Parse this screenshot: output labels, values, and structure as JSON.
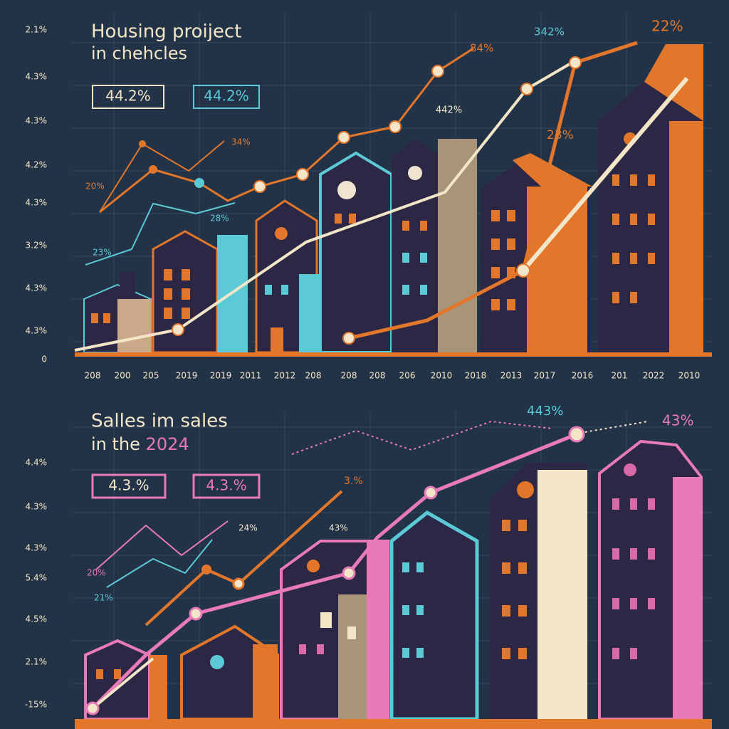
{
  "top_panel": {
    "title": [
      "Housing proiject",
      "in chehcles"
    ],
    "badges": [
      "44.2%",
      "44.2%"
    ],
    "y_labels": [
      "2.1%",
      "4.3%",
      "4.3%",
      "4.2%",
      "4.3%",
      "3.2%",
      "4.3%",
      "4.3%",
      "0"
    ],
    "x_labels": [
      "208",
      "200",
      "205",
      "2019",
      "2019",
      "2011",
      "2012",
      "208",
      "208",
      "208",
      "206",
      "2010",
      "2018",
      "2013",
      "2017",
      "2016",
      "201",
      "2022",
      "2010"
    ],
    "annotations": [
      "84%",
      "342%",
      "22%",
      "442%",
      "23%",
      "34%",
      "20%",
      "28%",
      "23%"
    ]
  },
  "bottom_panel": {
    "title_line1": "Salles im sales",
    "title_line2": "in the",
    "title_highlight": "2024",
    "badges": [
      "4.3.%",
      "4.3.%"
    ],
    "y_labels": [
      "4.4%",
      "4.3%",
      "4.3%",
      "5.4%",
      "4.5%",
      "2.1%",
      "-15%"
    ],
    "annotations": [
      "443%",
      "43%",
      "3.%",
      "24%",
      "43%",
      "20%",
      "21%"
    ]
  }
}
